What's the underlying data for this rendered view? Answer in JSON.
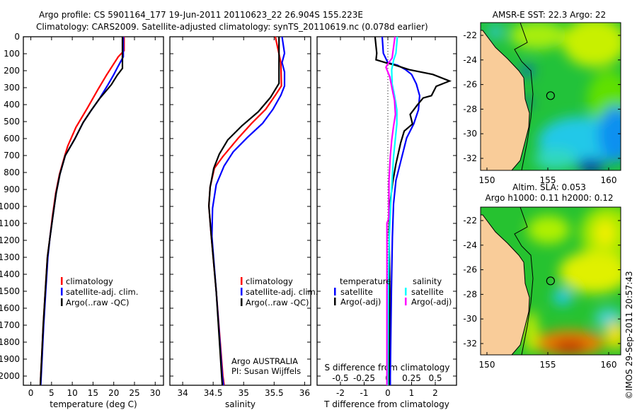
{
  "title_line1": "Argo profile: CS 5901164_177 19-Jun-2011 20110623_22 26.904S 155.223E",
  "title_line2": "Climatology: CARS2009. Satellite-adjusted climatology: synTS_20110619.nc (0.078d earlier)",
  "colors": {
    "climatology": "#ff0000",
    "satellite": "#0000ff",
    "argo": "#000000",
    "s_satellite": "#00ffff",
    "s_argo": "#ff00ff",
    "land": "#f9cc99"
  },
  "chart_data": [
    {
      "type": "line",
      "xlabel": "temperature (deg C)",
      "ylabel": "",
      "xlim": [
        -1.8,
        32
      ],
      "ylim": [
        2054,
        0
      ],
      "xticks": [
        "0",
        "5",
        "10",
        "15",
        "20",
        "25",
        "30"
      ],
      "xtick_values": [
        0,
        5,
        10,
        15,
        20,
        25,
        30
      ],
      "yticks": [
        "0",
        "100",
        "200",
        "300",
        "400",
        "500",
        "600",
        "700",
        "800",
        "900",
        "1000",
        "1100",
        "1200",
        "1300",
        "1400",
        "1500",
        "1600",
        "1700",
        "1800",
        "1900",
        "2000"
      ],
      "legend": [
        "climatology",
        "satellite-adj. clim.",
        "Argo(..raw -QC)"
      ],
      "series": [
        {
          "name": "climatology",
          "depth": [
            0,
            82,
            118,
            228,
            311,
            422,
            533,
            644,
            700,
            811,
            922,
            1061,
            1186,
            1300,
            1500,
            1700,
            1900,
            2000,
            2054
          ],
          "values": [
            22.5,
            22.5,
            21.1,
            18.2,
            16.2,
            13.6,
            10.9,
            8.9,
            8.2,
            6.9,
            6.0,
            5.2,
            4.6,
            4.0,
            3.5,
            3.0,
            2.6,
            2.4,
            2.3
          ]
        },
        {
          "name": "satellite-adj. clim.",
          "depth": [
            0,
            118,
            172,
            228,
            283,
            367,
            436,
            506,
            603,
            700,
            811,
            922,
            1061,
            1186,
            1300,
            1500,
            1700,
            1900,
            2000,
            2054
          ],
          "values": [
            22.3,
            22.3,
            21.1,
            19.9,
            18.6,
            16.5,
            14.5,
            12.6,
            10.6,
            8.3,
            7.0,
            6.1,
            5.3,
            4.6,
            4.1,
            3.6,
            3.1,
            2.7,
            2.5,
            2.4
          ]
        },
        {
          "name": "Argo(..raw -QC)",
          "depth": [
            0,
            186,
            228,
            283,
            367,
            436,
            506,
            603,
            700,
            811,
            922,
            1061,
            1186,
            1300,
            1500,
            1700,
            1900,
            2000,
            2054
          ],
          "values": [
            22.1,
            22.1,
            20.8,
            19.4,
            16.5,
            14.5,
            12.6,
            10.6,
            8.3,
            7.0,
            6.1,
            5.3,
            4.6,
            4.0,
            3.5,
            3.0,
            2.6,
            2.4,
            2.3
          ]
        }
      ]
    },
    {
      "type": "line",
      "xlabel": "salinity",
      "xlim": [
        33.79,
        36.1
      ],
      "ylim": [
        2054,
        0
      ],
      "xticks": [
        "34",
        "34.5",
        "35",
        "35.5",
        "36"
      ],
      "xtick_values": [
        34,
        34.5,
        35,
        35.5,
        36
      ],
      "legend": [
        "climatology",
        "satellite-adj. clim.",
        "Argo(..raw -QC)"
      ],
      "annotation": [
        "Argo AUSTRALIA",
        "PI: Susan Wijffels"
      ],
      "series": [
        {
          "name": "climatology",
          "depth": [
            0,
            152,
            290,
            345,
            428,
            511,
            594,
            706,
            775,
            886,
            997,
            1178,
            1500,
            2000,
            2054
          ],
          "values": [
            35.52,
            35.61,
            35.62,
            35.52,
            35.36,
            35.13,
            34.92,
            34.66,
            34.52,
            34.45,
            34.43,
            34.47,
            34.55,
            34.66,
            34.68
          ]
        },
        {
          "name": "satellite-adj. clim.",
          "depth": [
            0,
            97,
            152,
            208,
            290,
            345,
            428,
            511,
            594,
            678,
            761,
            872,
            1011,
            1178,
            1500,
            2000,
            2054
          ],
          "values": [
            35.63,
            35.67,
            35.63,
            35.67,
            35.67,
            35.61,
            35.48,
            35.31,
            35.06,
            34.83,
            34.68,
            34.55,
            34.49,
            34.48,
            34.55,
            34.65,
            34.67
          ]
        },
        {
          "name": "Argo(..raw -QC)",
          "depth": [
            0,
            275,
            358,
            442,
            525,
            608,
            692,
            775,
            886,
            997,
            1178,
            1500,
            2000,
            2054
          ],
          "values": [
            35.58,
            35.58,
            35.44,
            35.24,
            34.97,
            34.74,
            34.6,
            34.51,
            34.45,
            34.43,
            34.47,
            34.55,
            34.64,
            34.65
          ]
        }
      ]
    },
    {
      "type": "line",
      "xlabel": "T difference from climatology",
      "xlabel_top": "S difference from climatology",
      "xlim": [
        -3.0,
        2.9
      ],
      "ylim": [
        2054,
        0
      ],
      "xticks": [
        "-2",
        "-1",
        "0",
        "1",
        "2"
      ],
      "xtick_values": [
        -2,
        -1,
        0,
        1,
        2
      ],
      "top_ticks": [
        "-0.5",
        "-0.25",
        "0",
        "0.25",
        "0.5"
      ],
      "top_tick_values": [
        -0.5,
        -0.25,
        0,
        0.25,
        0.5
      ],
      "legend_headers": [
        "temperature",
        "salinity"
      ],
      "legend": [
        "satellite",
        "Argo(-adj)",
        "satellite",
        "Argo(-adj)"
      ],
      "series": [
        {
          "name": "T satellite",
          "units": "degC",
          "depth": [
            0,
            97,
            153,
            167,
            194,
            222,
            278,
            347,
            431,
            514,
            597,
            708,
            847,
            986,
            1181,
            1500,
            2000,
            2054
          ],
          "values": [
            -0.24,
            -0.19,
            0.0,
            0.4,
            0.75,
            1.0,
            1.2,
            1.34,
            1.29,
            1.09,
            0.79,
            0.59,
            0.34,
            0.24,
            0.19,
            0.15,
            0.1,
            0.1
          ]
        },
        {
          "name": "T Argo(-adj)",
          "units": "degC",
          "depth": [
            0,
            97,
            136,
            153,
            167,
            194,
            222,
            261,
            292,
            347,
            361,
            403,
            458,
            514,
            556,
            625,
            750,
            861,
            972,
            1139,
            1500,
            2000,
            2054
          ],
          "values": [
            -0.54,
            -0.47,
            -0.5,
            -0.09,
            0.3,
            0.9,
            1.9,
            2.6,
            2.04,
            1.84,
            1.49,
            1.24,
            0.94,
            1.04,
            0.69,
            0.54,
            0.34,
            0.2,
            0.1,
            0.05,
            0.08,
            0.05,
            0.05
          ]
        },
        {
          "name": "S satellite",
          "units": "psu",
          "depth": [
            0,
            97,
            139,
            194,
            278,
            347,
            431,
            514,
            597,
            708,
            847,
            986,
            1181,
            1500,
            2000,
            2054
          ],
          "values": [
            0.1,
            0.085,
            0.06,
            0.04,
            0.045,
            0.07,
            0.095,
            0.095,
            0.08,
            0.06,
            0.045,
            0.03,
            0.015,
            0.005,
            0.0,
            0.0
          ]
        },
        {
          "name": "S Argo(-adj)",
          "units": "psu",
          "depth": [
            0,
            125,
            167,
            180,
            236,
            306,
            375,
            458,
            528,
            611,
            708,
            847,
            1069,
            1100,
            1500,
            2000,
            2054
          ],
          "values": [
            0.075,
            0.045,
            -0.008,
            -0.02,
            0.02,
            0.045,
            0.07,
            0.08,
            0.06,
            0.04,
            0.025,
            0.012,
            0.01,
            -0.01,
            -0.01,
            -0.01,
            -0.01
          ]
        }
      ]
    }
  ],
  "maps": [
    {
      "title": [
        "AMSR-E SST: 22.3 Argo: 22"
      ],
      "lat_ticks": [
        "-22",
        "-24",
        "-26",
        "-28",
        "-30",
        "-32"
      ],
      "lon_ticks": [
        "150",
        "155",
        "160"
      ],
      "argo_position": {
        "lon": 155.223,
        "lat": -26.904
      }
    },
    {
      "title": [
        "Altim. SLA: 0.053",
        "Argo h1000: 0.11 h2000: 0.12"
      ],
      "lat_ticks": [
        "-22",
        "-24",
        "-26",
        "-28",
        "-30",
        "-32"
      ],
      "lon_ticks": [
        "150",
        "155",
        "160"
      ],
      "argo_position": {
        "lon": 155.223,
        "lat": -26.904
      }
    }
  ],
  "credit": "©IMOS 29-Sep-2011 20:57:43"
}
